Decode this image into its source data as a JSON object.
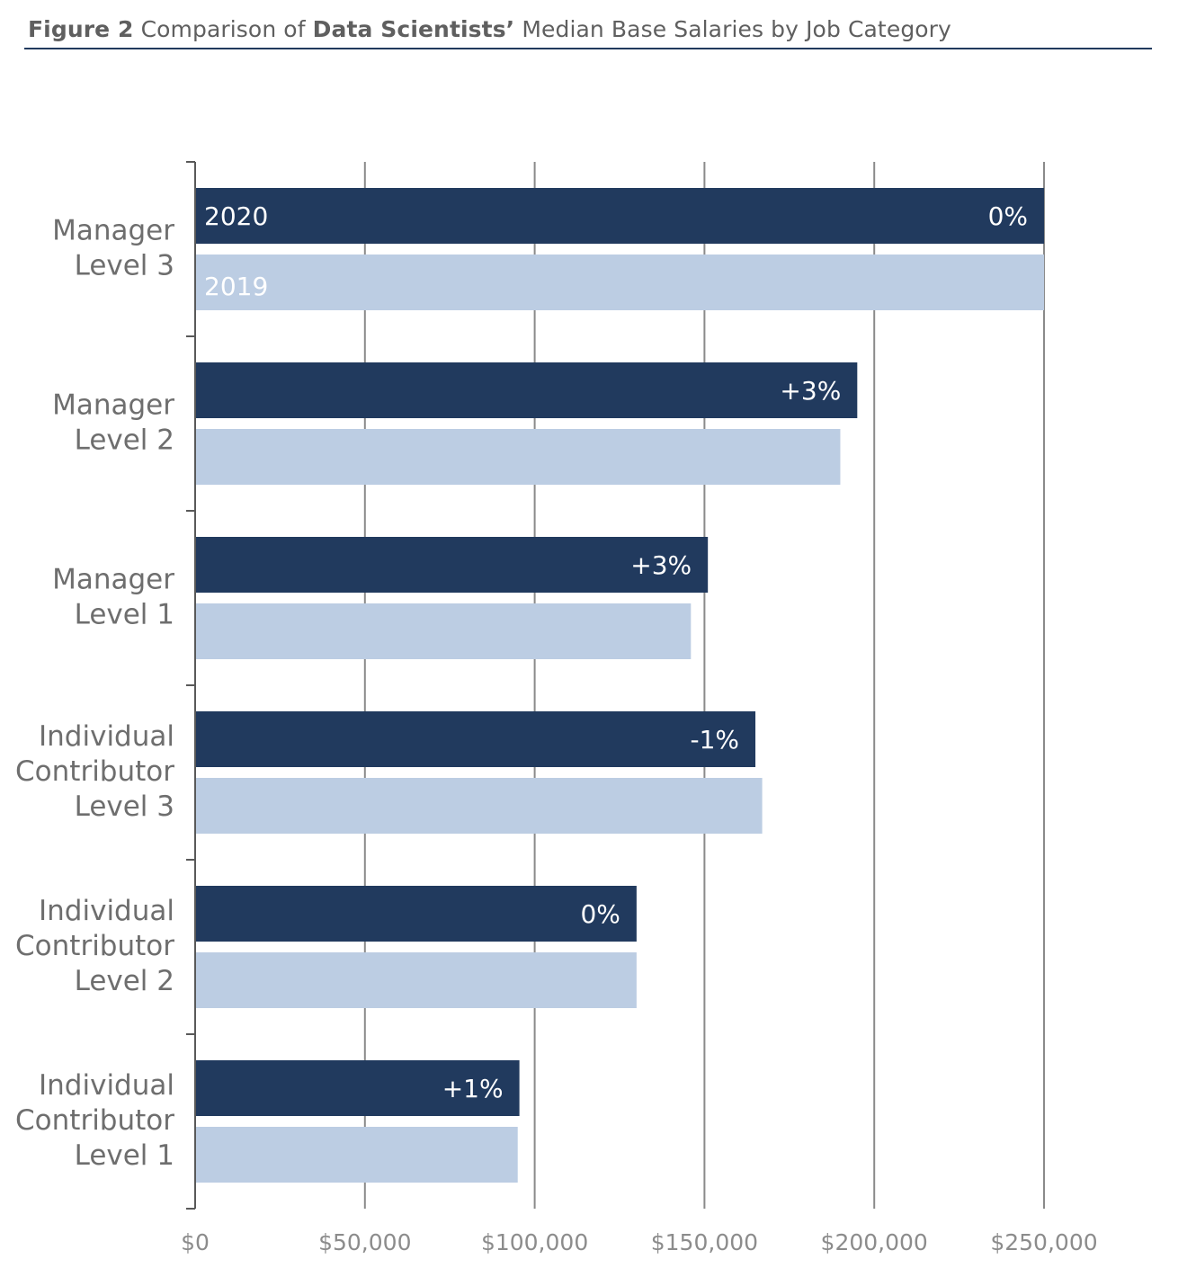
{
  "figure": {
    "title_prefix": "Figure 2",
    "title_middle": " Comparison of ",
    "title_bold": "Data Scientists’",
    "title_suffix": " Median Base Salaries by Job Category"
  },
  "colors": {
    "series_2020": "#213a5e",
    "series_2019": "#bccde3",
    "gridline": "#8a8a8a",
    "axis": "#595959",
    "title_rule": "#213a5e"
  },
  "chart_data": {
    "type": "bar",
    "orientation": "horizontal",
    "title": "Figure 2 Comparison of Data Scientists’ Median Base Salaries by Job Category",
    "categories": [
      [
        "Manager",
        "Level 3"
      ],
      [
        "Manager",
        "Level 2"
      ],
      [
        "Manager",
        "Level 1"
      ],
      [
        "Individual",
        "Contributor",
        "Level 3"
      ],
      [
        "Individual",
        "Contributor",
        "Level 2"
      ],
      [
        "Individual",
        "Contributor",
        "Level 1"
      ]
    ],
    "series": [
      {
        "name": "2020",
        "values": [
          250000,
          195000,
          151000,
          165000,
          130000,
          95500
        ],
        "labels": [
          "0%",
          "+3%",
          "+3%",
          "-1%",
          "0%",
          "+1%"
        ]
      },
      {
        "name": "2019",
        "values": [
          250000,
          190000,
          146000,
          167000,
          130000,
          95000
        ]
      }
    ],
    "xlim": [
      0,
      250000
    ],
    "xticks": [
      0,
      50000,
      100000,
      150000,
      200000,
      250000
    ],
    "xtick_labels": [
      "$0",
      "$50,000",
      "$100,000",
      "$150,000",
      "$200,000",
      "$250,000"
    ],
    "grid": true,
    "legend": "inline labels on first category bars"
  }
}
